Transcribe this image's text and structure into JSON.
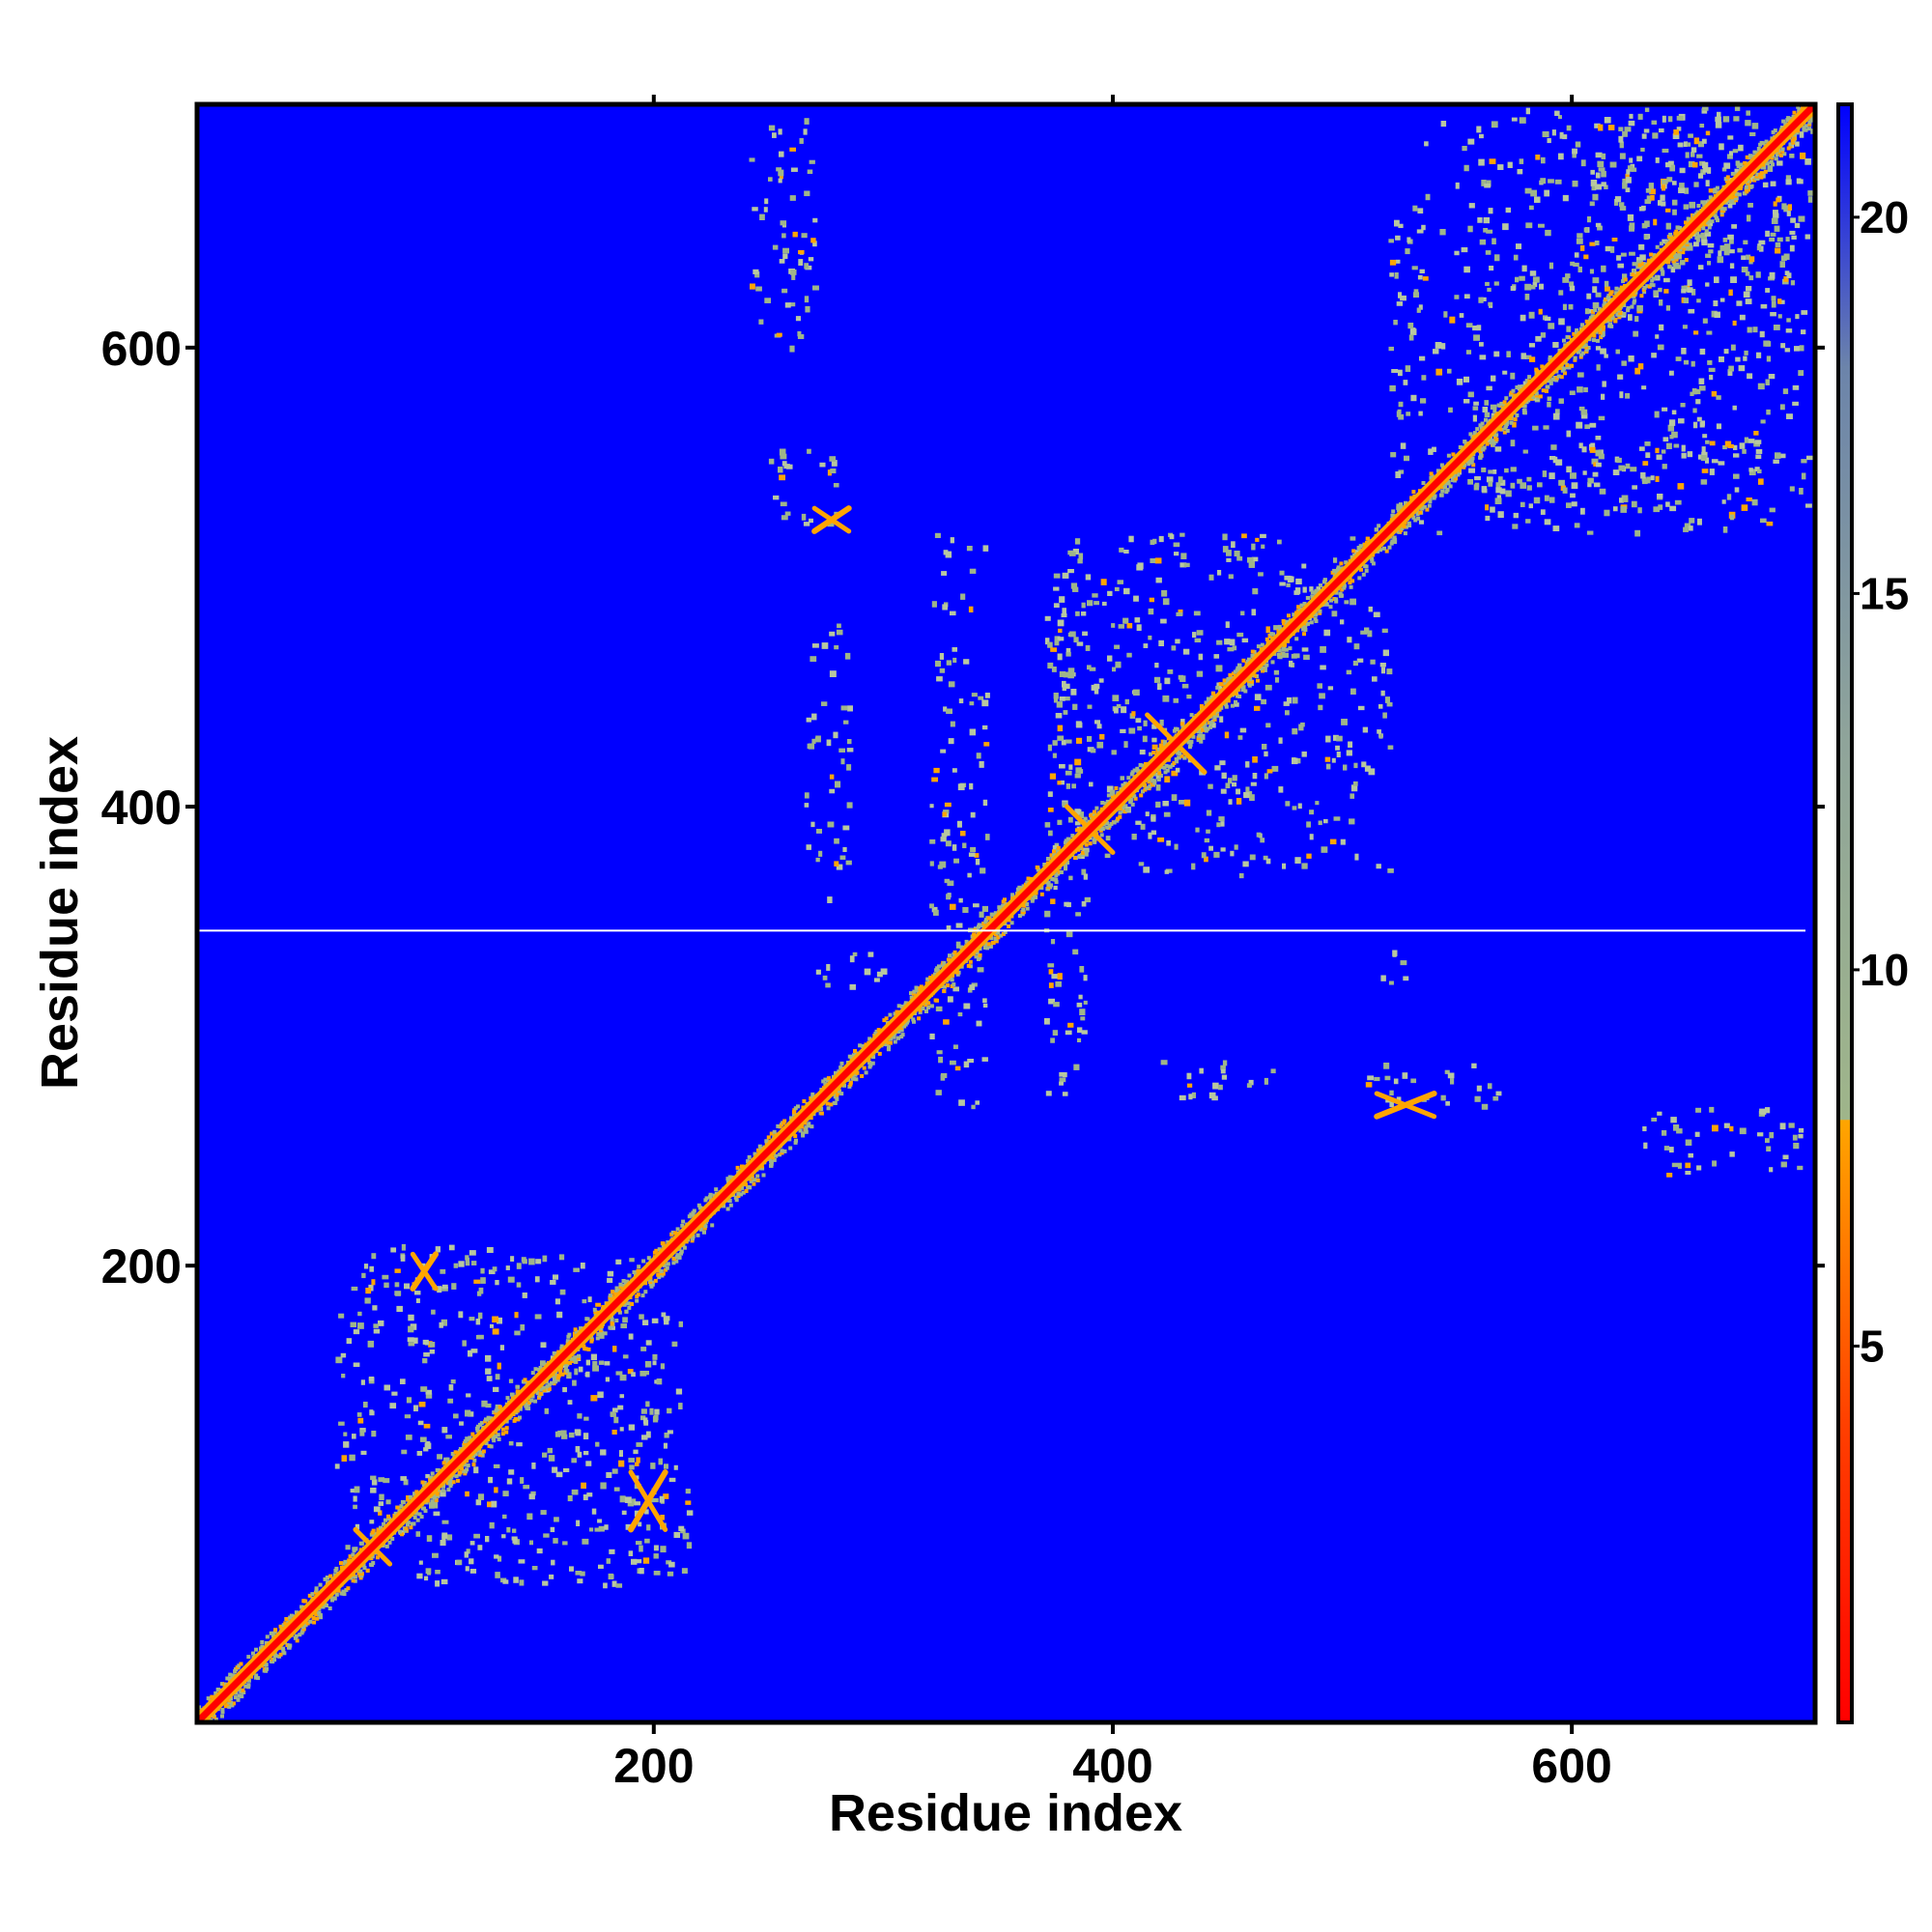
{
  "chart_data": {
    "type": "heatmap",
    "title": "",
    "xlabel": "Residue index",
    "ylabel": "Residue index",
    "xlim": [
      1,
      706
    ],
    "ylim": [
      1,
      706
    ],
    "x_ticks": [
      200,
      400,
      600
    ],
    "y_ticks": [
      200,
      400,
      600
    ],
    "x_tick_labels": [
      "200",
      "400",
      "600"
    ],
    "y_tick_labels": [
      "200",
      "400",
      "600"
    ],
    "colorbar": {
      "range": [
        0,
        21.5
      ],
      "ticks": [
        5,
        10,
        15,
        20
      ],
      "tick_labels": [
        "5",
        "10",
        "15",
        "20"
      ],
      "stops": [
        {
          "value": 0,
          "color": "#ff0000"
        },
        {
          "value": 4,
          "color": "#ff4000"
        },
        {
          "value": 8,
          "color": "#ffa500"
        },
        {
          "value": 8.01,
          "color": "#9fb58a"
        },
        {
          "value": 13,
          "color": "#8fa49a"
        },
        {
          "value": 18,
          "color": "#6c84aa"
        },
        {
          "value": 21.5,
          "color": "#0000ff"
        }
      ],
      "grid": false
    },
    "background_color": "#0000ff",
    "diagonal_color": "#ff0000",
    "contact_color": "#9fb58a",
    "near_contact_color": "#ffa500",
    "separator_line": {
      "residue": 346,
      "color": "#ffffff"
    },
    "contact_blocks": [
      {
        "x": [
          60,
          205
        ],
        "y": [
          60,
          205
        ]
      },
      {
        "x": [
          65,
          140
        ],
        "y": [
          190,
          210
        ]
      },
      {
        "x": [
          185,
          215
        ],
        "y": [
          65,
          180
        ]
      },
      {
        "x": [
          240,
          270
        ],
        "y": [
          600,
          705
        ]
      },
      {
        "x": [
          250,
          280
        ],
        "y": [
          520,
          560
        ]
      },
      {
        "x": [
          265,
          285
        ],
        "y": [
          360,
          480
        ]
      },
      {
        "x": [
          265,
          300
        ],
        "y": [
          320,
          340
        ]
      },
      {
        "x": [
          320,
          345
        ],
        "y": [
          270,
          520
        ]
      },
      {
        "x": [
          370,
          390
        ],
        "y": [
          270,
          520
        ]
      },
      {
        "x": [
          370,
          520
        ],
        "y": [
          370,
          520
        ]
      },
      {
        "x": [
          420,
          470
        ],
        "y": [
          270,
          290
        ]
      },
      {
        "x": [
          510,
          570
        ],
        "y": [
          270,
          290
        ]
      },
      {
        "x": [
          515,
          530
        ],
        "y": [
          320,
          340
        ]
      },
      {
        "x": [
          520,
          700
        ],
        "y": [
          520,
          705
        ]
      },
      {
        "x": [
          560,
          706
        ],
        "y": [
          530,
          560
        ]
      },
      {
        "x": [
          630,
          706
        ],
        "y": [
          240,
          270
        ]
      },
      {
        "x": [
          610,
          706
        ],
        "y": [
          620,
          706
        ]
      }
    ],
    "antiparallel_contacts": [
      {
        "x": [
          70,
          85
        ],
        "y": [
          70,
          85
        ]
      },
      {
        "x": [
          95,
          105
        ],
        "y": [
          190,
          205
        ]
      },
      {
        "x": [
          190,
          205
        ],
        "y": [
          85,
          110
        ]
      },
      {
        "x": [
          380,
          400
        ],
        "y": [
          380,
          400
        ]
      },
      {
        "x": [
          415,
          440
        ],
        "y": [
          415,
          440
        ]
      },
      {
        "x": [
          270,
          285
        ],
        "y": [
          520,
          530
        ]
      },
      {
        "x": [
          515,
          540
        ],
        "y": [
          265,
          275
        ]
      }
    ]
  }
}
